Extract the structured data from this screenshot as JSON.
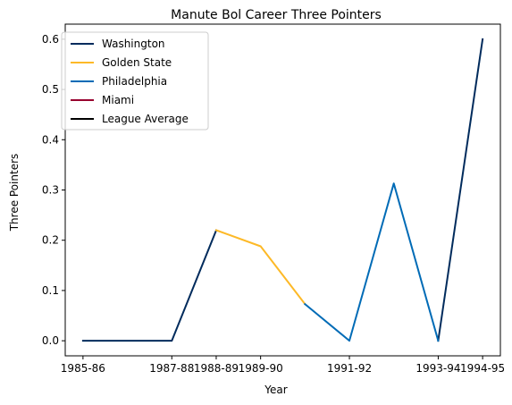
{
  "chart_data": {
    "type": "line",
    "title": "Manute Bol Career Three Pointers",
    "xlabel": "Year",
    "ylabel": "Three Pointers",
    "ylim": [
      -0.03,
      0.63
    ],
    "yticks": [
      0.0,
      0.1,
      0.2,
      0.3,
      0.4,
      0.5,
      0.6
    ],
    "ytick_labels": [
      "0.0",
      "0.1",
      "0.2",
      "0.3",
      "0.4",
      "0.5",
      "0.6"
    ],
    "xticks": [
      "1985-86",
      "1987-88",
      "1988-89",
      "1989-90",
      "1991-92",
      "1993-94",
      "1994-95"
    ],
    "grid": false,
    "legend_location": "upper left",
    "series": [
      {
        "name": "Washington",
        "color": "#002B5C",
        "points": [
          {
            "x": "1985-86",
            "y": 0.0
          },
          {
            "x": "1986-87",
            "y": 0.0
          },
          {
            "x": "1987-88",
            "y": 0.0
          },
          {
            "x": "1988-89",
            "y": 0.22
          }
        ]
      },
      {
        "name": "Washington",
        "color": "#002B5C",
        "legend": false,
        "points": [
          {
            "x": "1993-94",
            "y": 0.0
          },
          {
            "x": "1994-95",
            "y": 0.6
          }
        ]
      },
      {
        "name": "Golden State",
        "color": "#FDB927",
        "points": [
          {
            "x": "1988-89",
            "y": 0.22
          },
          {
            "x": "1989-90",
            "y": 0.188
          },
          {
            "x": "1990-91",
            "y": 0.073
          }
        ]
      },
      {
        "name": "Philadelphia",
        "color": "#006BB6",
        "points": [
          {
            "x": "1990-91",
            "y": 0.073
          },
          {
            "x": "1991-92",
            "y": 0.0
          },
          {
            "x": "1992-93",
            "y": 0.313
          },
          {
            "x": "1993-94",
            "y": 0.0
          }
        ]
      },
      {
        "name": "Miami",
        "color": "#98002E",
        "points": []
      },
      {
        "name": "League Average",
        "color": "#000000",
        "points": []
      }
    ]
  }
}
